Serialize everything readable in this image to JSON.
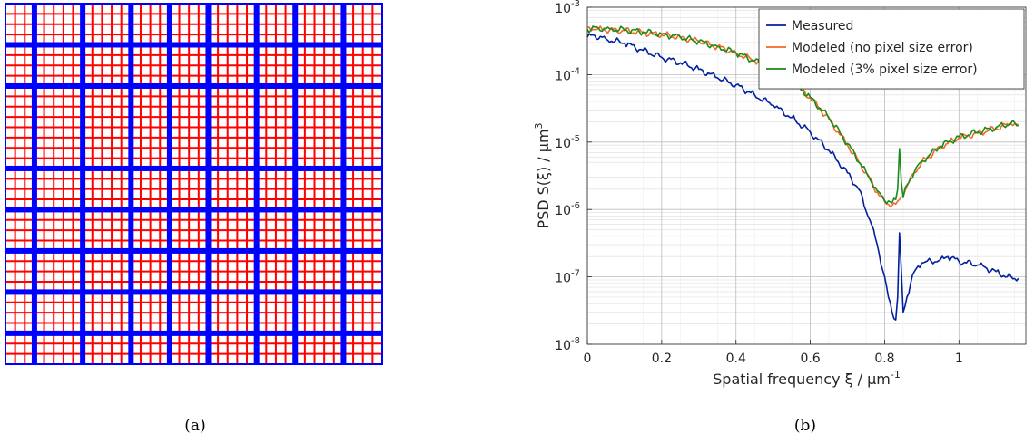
{
  "captions": {
    "a": "(a)",
    "b": "(b)"
  },
  "grid_pattern": {
    "fine_line_color": "#ff0000",
    "coarse_line_color": "#0000ff",
    "border_color": "#0000ff"
  },
  "chart_data": {
    "type": "line",
    "title": "",
    "xlabel": "Spatial frequency ξ / µm",
    "xlabel_sup": "-1",
    "ylabel": "PSD S(ξ) / µm",
    "ylabel_sup": "3",
    "xlim": [
      0,
      1.18
    ],
    "ylim": [
      1e-08,
      0.001
    ],
    "yscale": "log",
    "grid": true,
    "minor_grid": true,
    "legend_position": "top-right",
    "x_ticks": [
      {
        "value": 0,
        "label": "0"
      },
      {
        "value": 0.2,
        "label": "0.2"
      },
      {
        "value": 0.4,
        "label": "0.4"
      },
      {
        "value": 0.6,
        "label": "0.6"
      },
      {
        "value": 0.8,
        "label": "0.8"
      },
      {
        "value": 1,
        "label": "1"
      }
    ],
    "y_ticks": [
      {
        "exp": -8,
        "base": "10",
        "sup": "-8"
      },
      {
        "exp": -7,
        "base": "10",
        "sup": "-7"
      },
      {
        "exp": -6,
        "base": "10",
        "sup": "-6"
      },
      {
        "exp": -5,
        "base": "10",
        "sup": "-5"
      },
      {
        "exp": -4,
        "base": "10",
        "sup": "-4"
      },
      {
        "exp": -3,
        "base": "10",
        "sup": "-3"
      }
    ],
    "series": [
      {
        "name": "Measured",
        "color": "#00209f",
        "x": [
          0.0,
          0.02,
          0.05,
          0.1,
          0.15,
          0.2,
          0.25,
          0.3,
          0.35,
          0.4,
          0.45,
          0.5,
          0.55,
          0.6,
          0.65,
          0.7,
          0.73,
          0.76,
          0.78,
          0.8,
          0.81,
          0.82,
          0.83,
          0.835,
          0.84,
          0.845,
          0.85,
          0.86,
          0.87,
          0.88,
          0.9,
          0.95,
          0.97,
          1.0,
          1.05,
          1.1,
          1.13,
          1.16
        ],
        "y": [
          0.00036,
          0.00038,
          0.00034,
          0.00029,
          0.00023,
          0.00018,
          0.00015,
          0.00012,
          9e-05,
          7e-05,
          5e-05,
          3.5e-05,
          2.3e-05,
          1.4e-05,
          7.5e-06,
          3.5e-06,
          2e-06,
          7e-07,
          3e-07,
          1e-07,
          5e-08,
          3e-08,
          2.3e-08,
          5e-08,
          4.5e-07,
          1.2e-07,
          3e-08,
          5e-08,
          8e-08,
          1.2e-07,
          1.6e-07,
          1.8e-07,
          2e-07,
          1.7e-07,
          1.5e-07,
          1.2e-07,
          1e-07,
          9.5e-08
        ]
      },
      {
        "name": "Modeled (no pixel size error)",
        "color": "#f26a24",
        "x": [
          0.0,
          0.03,
          0.06,
          0.1,
          0.15,
          0.2,
          0.25,
          0.3,
          0.35,
          0.4,
          0.45,
          0.5,
          0.55,
          0.6,
          0.65,
          0.7,
          0.75,
          0.78,
          0.8,
          0.82,
          0.83,
          0.84,
          0.86,
          0.88,
          0.9,
          0.95,
          1.0,
          1.05,
          1.1,
          1.14,
          1.16
        ],
        "y": [
          0.0005,
          0.00048,
          0.00046,
          0.00045,
          0.00042,
          0.00039,
          0.00036,
          0.00031,
          0.00026,
          0.00021,
          0.00016,
          0.00012,
          8e-05,
          4.5e-05,
          2.2e-05,
          9e-06,
          3.5e-06,
          1.8e-06,
          1.3e-06,
          1.15e-06,
          1.2e-06,
          1.4e-06,
          2.2e-06,
          3.5e-06,
          5e-06,
          8.5e-06,
          1.15e-05,
          1.35e-05,
          1.6e-05,
          1.85e-05,
          1.8e-05
        ]
      },
      {
        "name": "Modeled (3% pixel size error)",
        "color": "#1b8a1b",
        "x": [
          0.0,
          0.03,
          0.06,
          0.1,
          0.15,
          0.2,
          0.25,
          0.3,
          0.35,
          0.4,
          0.45,
          0.5,
          0.55,
          0.6,
          0.65,
          0.7,
          0.75,
          0.78,
          0.8,
          0.82,
          0.83,
          0.835,
          0.84,
          0.845,
          0.85,
          0.86,
          0.88,
          0.9,
          0.95,
          1.0,
          1.05,
          1.1,
          1.14,
          1.16
        ],
        "y": [
          0.00047,
          0.00049,
          0.00048,
          0.00046,
          0.00043,
          0.0004,
          0.00036,
          0.00031,
          0.00026,
          0.00021,
          0.00016,
          0.00012,
          8e-05,
          4.6e-05,
          2.3e-05,
          9.5e-06,
          3.6e-06,
          1.9e-06,
          1.35e-06,
          1.25e-06,
          1.4e-06,
          2e-06,
          8e-06,
          2.5e-06,
          1.5e-06,
          2.3e-06,
          3.6e-06,
          5.2e-06,
          8.7e-06,
          1.2e-05,
          1.4e-05,
          1.65e-05,
          1.9e-05,
          1.75e-05
        ]
      }
    ]
  }
}
